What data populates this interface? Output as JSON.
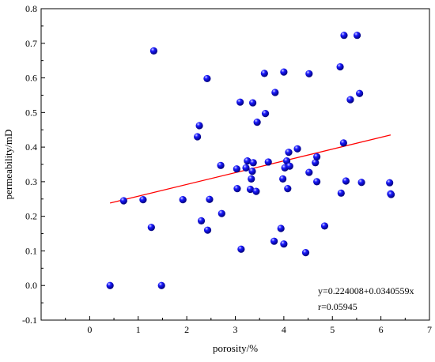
{
  "chart_data": {
    "type": "scatter",
    "title": "",
    "xlabel": "porosity/%",
    "ylabel": "permeability/mD",
    "xlim": [
      -1,
      7
    ],
    "ylim": [
      -0.1,
      0.8
    ],
    "x_ticks": [
      0,
      1,
      2,
      3,
      4,
      5,
      6,
      7
    ],
    "y_ticks": [
      -0.1,
      0.0,
      0.1,
      0.2,
      0.3,
      0.4,
      0.5,
      0.6,
      0.7,
      0.8
    ],
    "x_tick_labels": [
      "0",
      "1",
      "2",
      "3",
      "4",
      "5",
      "6",
      "7"
    ],
    "y_tick_labels": [
      "-0.1",
      "0.0",
      "0.1",
      "0.2",
      "0.3",
      "0.4",
      "0.5",
      "0.6",
      "0.7",
      "0.8"
    ],
    "grid": false,
    "legend": "none",
    "colors": {
      "points": "#1a1aff",
      "fit_line": "#ff0000",
      "axes": "#000000"
    },
    "series": [
      {
        "x": [
          0.42,
          0.7,
          1.1,
          1.27,
          1.32,
          1.48,
          1.92,
          2.22,
          2.26,
          2.3,
          2.42,
          2.43,
          2.47,
          2.7,
          2.72,
          3.03,
          3.04,
          3.1,
          3.12,
          3.22,
          3.25,
          3.31,
          3.33,
          3.35,
          3.36,
          3.37,
          3.43,
          3.45,
          3.6,
          3.62,
          3.68,
          3.8,
          3.82,
          3.94,
          3.98,
          4.0,
          4.0,
          4.02,
          4.06,
          4.08,
          4.1,
          4.12,
          4.28,
          4.45,
          4.52,
          4.52,
          4.65,
          4.68,
          4.68,
          4.84,
          5.16,
          5.18,
          5.23,
          5.24,
          5.28,
          5.37,
          5.51,
          5.56,
          5.6,
          6.18,
          6.2,
          6.21
        ],
        "y": [
          0.0,
          0.245,
          0.248,
          0.168,
          0.678,
          0.0,
          0.248,
          0.43,
          0.462,
          0.187,
          0.598,
          0.16,
          0.249,
          0.347,
          0.208,
          0.337,
          0.28,
          0.53,
          0.105,
          0.34,
          0.36,
          0.278,
          0.308,
          0.33,
          0.528,
          0.355,
          0.272,
          0.472,
          0.613,
          0.497,
          0.357,
          0.128,
          0.558,
          0.165,
          0.308,
          0.12,
          0.617,
          0.34,
          0.36,
          0.28,
          0.385,
          0.345,
          0.395,
          0.095,
          0.327,
          0.612,
          0.355,
          0.372,
          0.3,
          0.172,
          0.632,
          0.267,
          0.412,
          0.723,
          0.302,
          0.537,
          0.723,
          0.555,
          0.298,
          0.297,
          0.265,
          0.263
        ]
      }
    ],
    "fit_line": {
      "x_range": [
        0.42,
        6.2
      ],
      "intercept": 0.224008,
      "slope": 0.0340559
    },
    "annotations": [
      "y=0.224008+0.0340559x",
      "r=0.05945"
    ]
  }
}
